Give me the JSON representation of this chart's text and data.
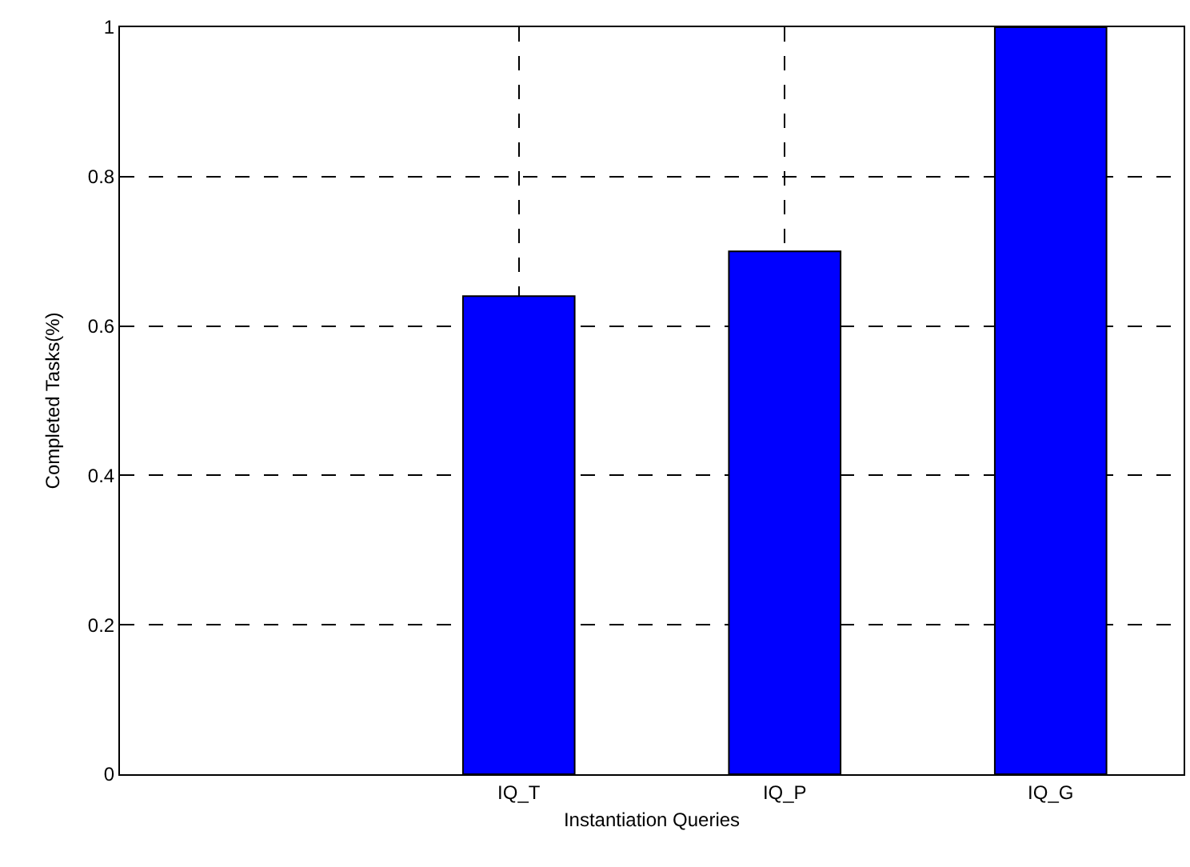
{
  "chart_data": {
    "type": "bar",
    "xlabel": "Instantiation Queries",
    "ylabel": "Completed Tasks(%)",
    "categories": [
      null,
      "IQ_T",
      "IQ_P",
      "IQ_G"
    ],
    "values": [
      null,
      0.64,
      0.7,
      1
    ],
    "color": "#0000ff",
    "ylim": [
      0,
      1
    ],
    "yticks": [
      0,
      0.2,
      0.4,
      0.6,
      0.8,
      1
    ],
    "grid": true
  }
}
